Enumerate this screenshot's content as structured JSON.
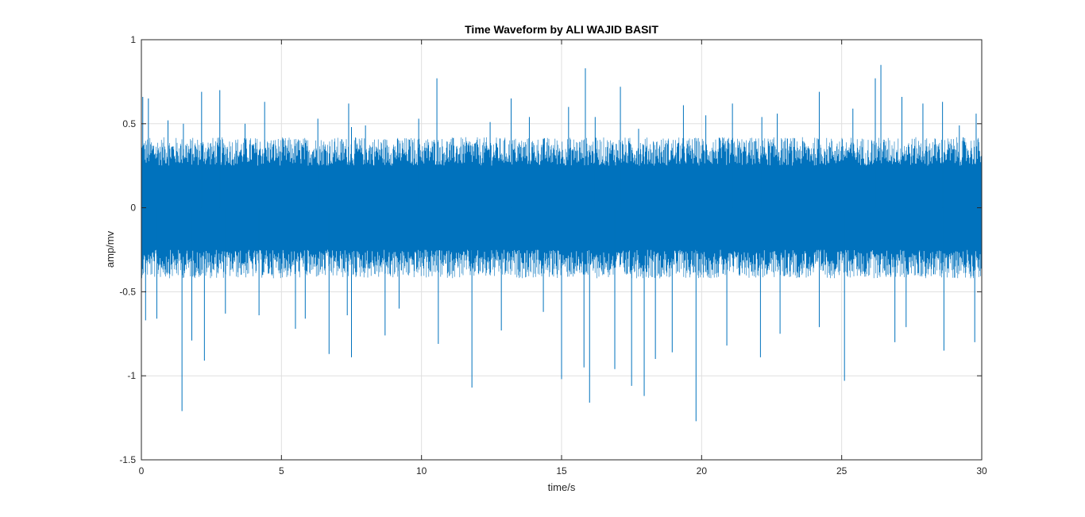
{
  "chart_data": {
    "type": "line",
    "title": "Time Waveform by ALI WAJID BASIT",
    "xlabel": "time/s",
    "ylabel": "amp/mv",
    "xlim": [
      0,
      30
    ],
    "ylim": [
      -1.5,
      1
    ],
    "x_ticks": [
      0,
      5,
      10,
      15,
      20,
      25,
      30
    ],
    "x_tick_labels": [
      "0",
      "5",
      "10",
      "15",
      "20",
      "25",
      "30"
    ],
    "y_ticks": [
      -1.5,
      -1,
      -0.5,
      0,
      0.5,
      1
    ],
    "y_tick_labels": [
      "-1.5",
      "-1",
      "-0.5",
      "0",
      "0.5",
      "1"
    ],
    "grid": true,
    "series": [
      {
        "color": "#0072BD",
        "band": {
          "x_range": [
            0,
            30
          ],
          "dense_min": -0.25,
          "dense_max": 0.25
        },
        "positive_peaks": [
          {
            "x": 0.05,
            "y": 0.66
          },
          {
            "x": 0.25,
            "y": 0.65
          },
          {
            "x": 0.95,
            "y": 0.52
          },
          {
            "x": 1.5,
            "y": 0.5
          },
          {
            "x": 2.15,
            "y": 0.69
          },
          {
            "x": 2.8,
            "y": 0.7
          },
          {
            "x": 3.7,
            "y": 0.5
          },
          {
            "x": 4.4,
            "y": 0.63
          },
          {
            "x": 6.3,
            "y": 0.53
          },
          {
            "x": 7.4,
            "y": 0.62
          },
          {
            "x": 7.5,
            "y": 0.48
          },
          {
            "x": 8.0,
            "y": 0.49
          },
          {
            "x": 9.9,
            "y": 0.53
          },
          {
            "x": 10.55,
            "y": 0.77
          },
          {
            "x": 12.45,
            "y": 0.51
          },
          {
            "x": 13.2,
            "y": 0.65
          },
          {
            "x": 13.85,
            "y": 0.54
          },
          {
            "x": 15.25,
            "y": 0.6
          },
          {
            "x": 15.85,
            "y": 0.83
          },
          {
            "x": 16.2,
            "y": 0.54
          },
          {
            "x": 17.1,
            "y": 0.72
          },
          {
            "x": 17.75,
            "y": 0.47
          },
          {
            "x": 19.35,
            "y": 0.61
          },
          {
            "x": 20.15,
            "y": 0.55
          },
          {
            "x": 21.1,
            "y": 0.62
          },
          {
            "x": 22.15,
            "y": 0.54
          },
          {
            "x": 22.7,
            "y": 0.56
          },
          {
            "x": 24.2,
            "y": 0.69
          },
          {
            "x": 25.4,
            "y": 0.59
          },
          {
            "x": 26.2,
            "y": 0.77
          },
          {
            "x": 26.4,
            "y": 0.85
          },
          {
            "x": 27.15,
            "y": 0.66
          },
          {
            "x": 27.9,
            "y": 0.62
          },
          {
            "x": 28.6,
            "y": 0.63
          },
          {
            "x": 29.2,
            "y": 0.49
          },
          {
            "x": 29.8,
            "y": 0.56
          }
        ],
        "negative_peaks": [
          {
            "x": 0.15,
            "y": -0.67
          },
          {
            "x": 0.55,
            "y": -0.66
          },
          {
            "x": 1.45,
            "y": -1.21
          },
          {
            "x": 1.8,
            "y": -0.79
          },
          {
            "x": 2.25,
            "y": -0.91
          },
          {
            "x": 3.0,
            "y": -0.63
          },
          {
            "x": 4.2,
            "y": -0.64
          },
          {
            "x": 5.5,
            "y": -0.72
          },
          {
            "x": 5.85,
            "y": -0.66
          },
          {
            "x": 6.7,
            "y": -0.87
          },
          {
            "x": 7.35,
            "y": -0.64
          },
          {
            "x": 7.5,
            "y": -0.89
          },
          {
            "x": 8.7,
            "y": -0.76
          },
          {
            "x": 9.2,
            "y": -0.6
          },
          {
            "x": 10.6,
            "y": -0.81
          },
          {
            "x": 11.8,
            "y": -1.07
          },
          {
            "x": 12.85,
            "y": -0.73
          },
          {
            "x": 14.35,
            "y": -0.62
          },
          {
            "x": 15.0,
            "y": -1.02
          },
          {
            "x": 15.8,
            "y": -0.95
          },
          {
            "x": 16.0,
            "y": -1.16
          },
          {
            "x": 16.9,
            "y": -0.96
          },
          {
            "x": 17.5,
            "y": -1.06
          },
          {
            "x": 17.95,
            "y": -1.12
          },
          {
            "x": 18.35,
            "y": -0.9
          },
          {
            "x": 18.95,
            "y": -0.86
          },
          {
            "x": 19.8,
            "y": -1.27
          },
          {
            "x": 20.9,
            "y": -0.82
          },
          {
            "x": 22.1,
            "y": -0.89
          },
          {
            "x": 22.8,
            "y": -0.75
          },
          {
            "x": 24.2,
            "y": -0.71
          },
          {
            "x": 25.1,
            "y": -1.03
          },
          {
            "x": 26.9,
            "y": -0.8
          },
          {
            "x": 27.3,
            "y": -0.71
          },
          {
            "x": 28.65,
            "y": -0.85
          },
          {
            "x": 29.75,
            "y": -0.8
          }
        ]
      }
    ]
  }
}
